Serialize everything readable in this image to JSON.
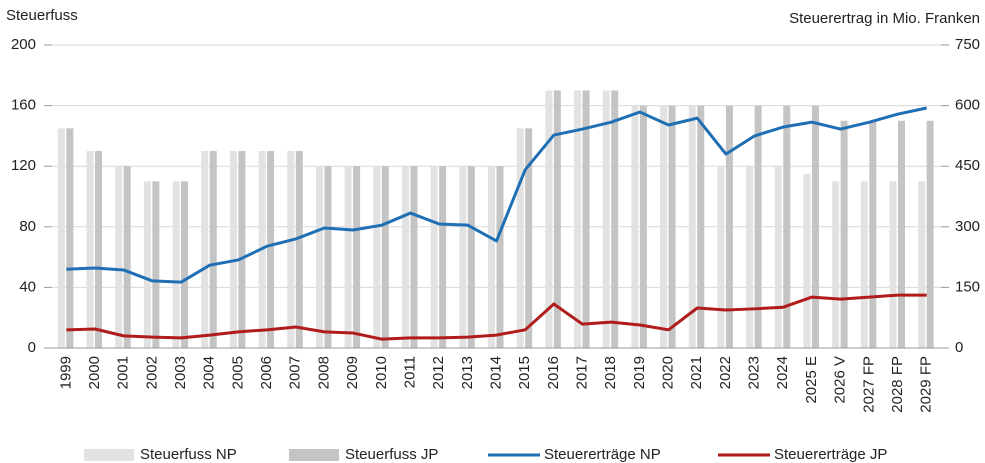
{
  "chart_data": {
    "type": "bar",
    "ylabel": "Steuerfuss",
    "y2label": "Steuerertrag in Mio. Franken",
    "categories": [
      "1999",
      "2000",
      "2001",
      "2002",
      "2003",
      "2004",
      "2005",
      "2006",
      "2007",
      "2008",
      "2009",
      "2010",
      "2011",
      "2012",
      "2013",
      "2014",
      "2015",
      "2016",
      "2017",
      "2018",
      "2019",
      "2020",
      "2021",
      "2022",
      "2023",
      "2024",
      "2025 E",
      "2026 V",
      "2027 FP",
      "2028 FP",
      "2029 FP"
    ],
    "series": [
      {
        "name": "Steuerfuss NP",
        "type": "bar",
        "color": "#e2e2e2",
        "values": [
          145,
          130,
          120,
          110,
          110,
          130,
          130,
          130,
          130,
          120,
          120,
          120,
          120,
          120,
          120,
          120,
          145,
          170,
          170,
          170,
          160,
          160,
          160,
          120,
          120,
          120,
          115,
          110,
          110,
          110,
          110
        ]
      },
      {
        "name": "Steuerfuss JP",
        "type": "bar",
        "color": "#c4c4c4",
        "values": [
          145,
          130,
          120,
          110,
          110,
          130,
          130,
          130,
          130,
          120,
          120,
          120,
          120,
          120,
          120,
          120,
          145,
          170,
          170,
          170,
          160,
          160,
          160,
          160,
          160,
          160,
          160,
          150,
          150,
          150,
          150
        ]
      },
      {
        "name": "Steuererträge NP",
        "type": "line",
        "axis": "y2",
        "color": "#1f6fb4",
        "values": [
          195,
          198,
          193,
          166,
          163,
          205,
          218,
          252,
          270,
          297,
          292,
          304,
          334,
          307,
          304,
          265,
          441,
          527,
          542,
          559,
          584,
          552,
          569,
          480,
          525,
          547,
          559,
          542,
          559,
          579,
          594
        ]
      },
      {
        "name": "Steuererträge JP",
        "type": "line",
        "axis": "y2",
        "color": "#b01c1c",
        "values": [
          45,
          47,
          30,
          27,
          25,
          32,
          40,
          45,
          52,
          40,
          37,
          22,
          25,
          25,
          27,
          32,
          45,
          109,
          59,
          64,
          57,
          45,
          99,
          94,
          97,
          101,
          126,
          121,
          126,
          131,
          131
        ]
      }
    ],
    "ylim": [
      0,
      200
    ],
    "yticks": [
      0,
      40,
      80,
      120,
      160,
      200
    ],
    "y2lim": [
      0,
      750
    ],
    "y2ticks": [
      0,
      150,
      300,
      450,
      600,
      750
    ],
    "grid": true,
    "legend": "bottom"
  }
}
